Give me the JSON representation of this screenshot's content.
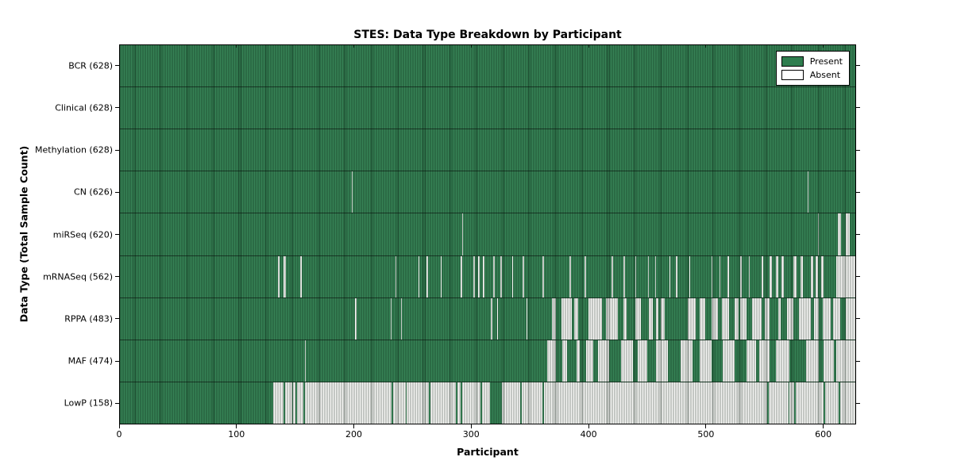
{
  "chart_data": {
    "type": "heatmap",
    "title": "STES: Data Type Breakdown by Participant",
    "xlabel": "Participant",
    "ylabel": "Data Type (Total Sample Count)",
    "n_participants": 628,
    "x_ticks": [
      0,
      100,
      200,
      300,
      400,
      500,
      600
    ],
    "xlim": [
      0,
      628
    ],
    "grid": false,
    "legend_position": "upper right",
    "legend": [
      {
        "label": "Present",
        "color": "#2e7d4e"
      },
      {
        "label": "Absent",
        "color": "#ffffff"
      }
    ],
    "colors": {
      "present": "#2e7d4e",
      "absent": "#f4f4f2",
      "bar_edge": "#15301f",
      "frame": "#000000",
      "background": "#ffffff"
    },
    "rows": [
      {
        "label": "BCR",
        "count": 628,
        "absent_segments": []
      },
      {
        "label": "Clinical",
        "count": 628,
        "absent_segments": []
      },
      {
        "label": "Methylation",
        "count": 628,
        "absent_segments": []
      },
      {
        "label": "CN",
        "count": 626,
        "absent_segments": [
          [
            198,
            199
          ],
          [
            587,
            588
          ]
        ]
      },
      {
        "label": "miRSeq",
        "count": 620,
        "absent_segments": [
          [
            292,
            293
          ],
          [
            596,
            597
          ],
          [
            613,
            616
          ],
          [
            620,
            623
          ]
        ]
      },
      {
        "label": "mRNASeq",
        "count": 562,
        "absent_segments": [
          [
            135,
            136
          ],
          [
            140,
            142
          ],
          [
            154,
            155
          ],
          [
            235,
            236
          ],
          [
            255,
            256
          ],
          [
            262,
            263
          ],
          [
            274,
            275
          ],
          [
            291,
            292
          ],
          [
            302,
            303
          ],
          [
            306,
            307
          ],
          [
            310,
            311
          ],
          [
            319,
            320
          ],
          [
            325,
            326
          ],
          [
            335,
            336
          ],
          [
            344,
            345
          ],
          [
            361,
            362
          ],
          [
            384,
            385
          ],
          [
            397,
            398
          ],
          [
            420,
            421
          ],
          [
            430,
            431
          ],
          [
            440,
            441
          ],
          [
            451,
            452
          ],
          [
            457,
            458
          ],
          [
            469,
            470
          ],
          [
            475,
            476
          ],
          [
            486,
            487
          ],
          [
            505,
            506
          ],
          [
            512,
            513
          ],
          [
            519,
            520
          ],
          [
            530,
            531
          ],
          [
            537,
            538
          ],
          [
            548,
            549
          ],
          [
            555,
            557
          ],
          [
            560,
            562
          ],
          [
            565,
            567
          ],
          [
            575,
            578
          ],
          [
            581,
            583
          ],
          [
            590,
            592
          ],
          [
            594,
            596
          ],
          [
            599,
            601
          ],
          [
            612,
            628
          ]
        ]
      },
      {
        "label": "RPPA",
        "count": 483,
        "absent_segments": [
          [
            201,
            202
          ],
          [
            231,
            232
          ],
          [
            240,
            241
          ],
          [
            317,
            318
          ],
          [
            322,
            323
          ],
          [
            347,
            348
          ],
          [
            369,
            372
          ],
          [
            377,
            386
          ],
          [
            388,
            391
          ],
          [
            400,
            412
          ],
          [
            415,
            425
          ],
          [
            430,
            433
          ],
          [
            440,
            445
          ],
          [
            452,
            455
          ],
          [
            458,
            460
          ],
          [
            462,
            465
          ],
          [
            485,
            492
          ],
          [
            495,
            500
          ],
          [
            505,
            511
          ],
          [
            514,
            520
          ],
          [
            525,
            528
          ],
          [
            530,
            535
          ],
          [
            540,
            548
          ],
          [
            551,
            555
          ],
          [
            562,
            564
          ],
          [
            570,
            575
          ],
          [
            580,
            590
          ],
          [
            593,
            597
          ],
          [
            600,
            607
          ],
          [
            609,
            615
          ],
          [
            620,
            628
          ]
        ]
      },
      {
        "label": "MAF",
        "count": 474,
        "absent_segments": [
          [
            158,
            159
          ],
          [
            365,
            372
          ],
          [
            378,
            382
          ],
          [
            390,
            393
          ],
          [
            398,
            404
          ],
          [
            408,
            418
          ],
          [
            428,
            438
          ],
          [
            442,
            450
          ],
          [
            458,
            468
          ],
          [
            479,
            489
          ],
          [
            495,
            505
          ],
          [
            515,
            525
          ],
          [
            535,
            543
          ],
          [
            546,
            555
          ],
          [
            560,
            572
          ],
          [
            586,
            597
          ],
          [
            601,
            610
          ],
          [
            612,
            628
          ]
        ]
      },
      {
        "label": "LowP",
        "count": 158,
        "absent_segments": [
          [
            131,
            140
          ],
          [
            141,
            147
          ],
          [
            148,
            150
          ],
          [
            151,
            157
          ],
          [
            158,
            232
          ],
          [
            233,
            244
          ],
          [
            245,
            264
          ],
          [
            265,
            287
          ],
          [
            288,
            291
          ],
          [
            292,
            308
          ],
          [
            309,
            316
          ],
          [
            326,
            342
          ],
          [
            343,
            361
          ],
          [
            362,
            553
          ],
          [
            554,
            571
          ],
          [
            572,
            576
          ],
          [
            577,
            601
          ],
          [
            602,
            614
          ],
          [
            615,
            628
          ]
        ]
      }
    ]
  }
}
